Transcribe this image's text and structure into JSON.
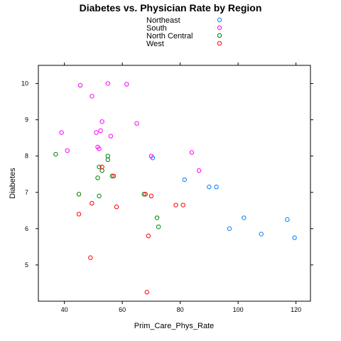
{
  "chart_data": {
    "type": "scatter",
    "title": "Diabetes vs. Physician Rate by Region",
    "xlabel": "Prim_Care_Phys_Rate",
    "ylabel": "Diabetes",
    "xlim": [
      31,
      125
    ],
    "ylim": [
      4.0,
      10.5
    ],
    "xticks": [
      "40",
      "60",
      "80",
      "100",
      "120"
    ],
    "yticks": [
      "5",
      "6",
      "7",
      "8",
      "9",
      "10"
    ],
    "legend_position": "top-center",
    "series": [
      {
        "name": "Northeast",
        "color": "#0080ff",
        "points": [
          [
            70.5,
            7.95
          ],
          [
            81.5,
            7.35
          ],
          [
            90.0,
            7.15
          ],
          [
            92.5,
            7.15
          ],
          [
            97.0,
            6.0
          ],
          [
            102.0,
            6.3
          ],
          [
            108.0,
            5.85
          ],
          [
            117.0,
            6.25
          ],
          [
            119.5,
            5.75
          ]
        ]
      },
      {
        "name": "South",
        "color": "#ff00ff",
        "points": [
          [
            45.5,
            9.95
          ],
          [
            49.5,
            9.65
          ],
          [
            55.0,
            10.0
          ],
          [
            61.5,
            9.98
          ],
          [
            39.0,
            8.65
          ],
          [
            41.0,
            8.15
          ],
          [
            51.0,
            8.65
          ],
          [
            52.5,
            8.7
          ],
          [
            53.0,
            8.95
          ],
          [
            52.0,
            8.2
          ],
          [
            51.5,
            8.25
          ],
          [
            56.0,
            8.55
          ],
          [
            65.0,
            8.9
          ],
          [
            70.0,
            8.0
          ],
          [
            84.0,
            8.1
          ],
          [
            86.5,
            7.6
          ]
        ]
      },
      {
        "name": "North Central",
        "color": "#008000",
        "points": [
          [
            37.0,
            8.05
          ],
          [
            55.0,
            8.0
          ],
          [
            55.0,
            7.9
          ],
          [
            52.0,
            7.7
          ],
          [
            53.0,
            7.6
          ],
          [
            51.5,
            7.4
          ],
          [
            56.5,
            7.45
          ],
          [
            45.0,
            6.95
          ],
          [
            52.0,
            6.9
          ],
          [
            67.5,
            6.95
          ],
          [
            72.0,
            6.3
          ],
          [
            72.5,
            6.05
          ]
        ]
      },
      {
        "name": "West",
        "color": "#ff0000",
        "points": [
          [
            53.0,
            7.7
          ],
          [
            57.0,
            7.45
          ],
          [
            49.5,
            6.7
          ],
          [
            45.0,
            6.4
          ],
          [
            58.0,
            6.6
          ],
          [
            68.0,
            6.95
          ],
          [
            70.0,
            6.9
          ],
          [
            78.5,
            6.65
          ],
          [
            81.0,
            6.65
          ],
          [
            69.0,
            5.8
          ],
          [
            49.0,
            5.2
          ],
          [
            68.5,
            4.25
          ]
        ]
      }
    ]
  }
}
